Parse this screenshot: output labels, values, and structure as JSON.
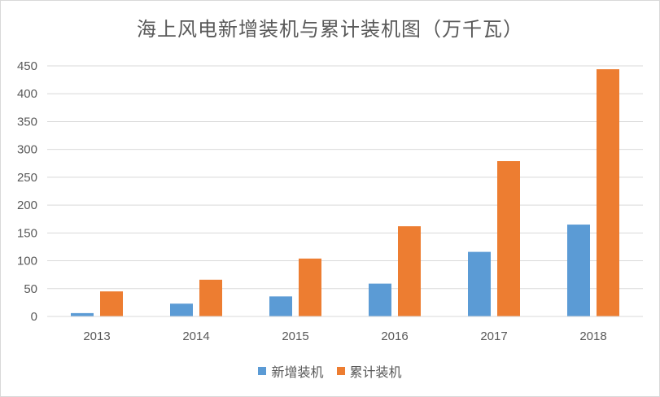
{
  "chart_data": {
    "type": "bar",
    "title": "海上风电新增装机与累计装机图（万千瓦）",
    "xlabel": "",
    "ylabel": "",
    "categories": [
      "2013",
      "2014",
      "2015",
      "2016",
      "2017",
      "2018"
    ],
    "series": [
      {
        "name": "新增装机",
        "color": "#5b9bd5",
        "values": [
          6,
          23,
          36,
          59,
          116,
          165
        ]
      },
      {
        "name": "累计装机",
        "color": "#ed7d31",
        "values": [
          45,
          66,
          104,
          162,
          279,
          444
        ]
      }
    ],
    "ylim": [
      0,
      450
    ],
    "yticks": [
      0,
      50,
      100,
      150,
      200,
      250,
      300,
      350,
      400,
      450
    ],
    "grid": true,
    "legend_position": "bottom"
  }
}
